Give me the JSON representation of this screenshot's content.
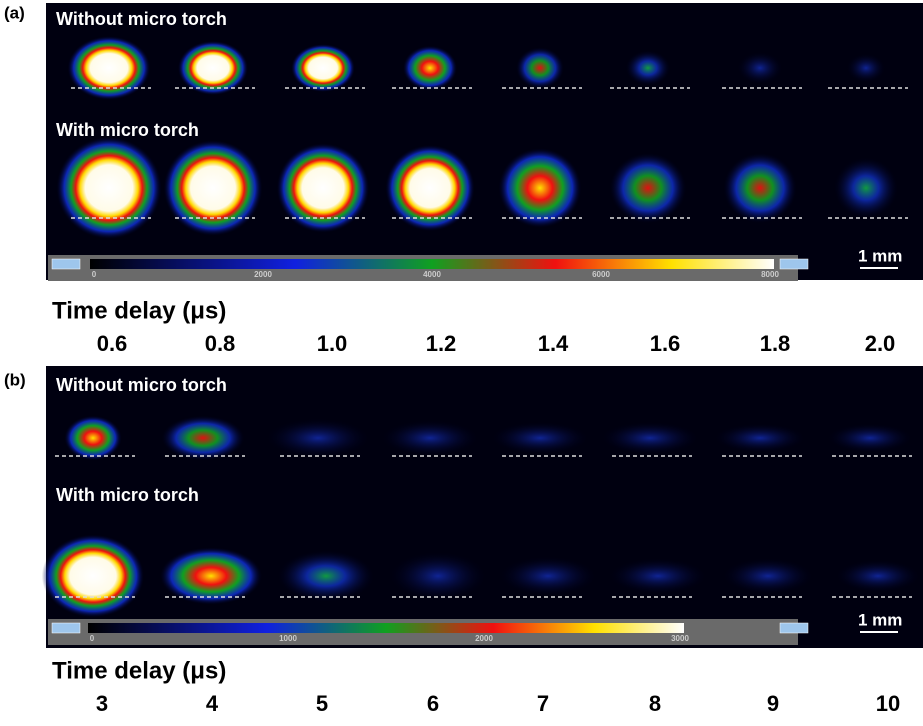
{
  "panels": [
    {
      "label": "(a)",
      "row_labels": [
        "Without micro torch",
        "With micro torch"
      ],
      "colorbar_ticks": [
        0,
        2000,
        4000,
        6000,
        8000
      ],
      "scale_bar": "1 mm",
      "axis_title": "Time delay (μs)",
      "time_delays": [
        "0.6",
        "0.8",
        "1.0",
        "1.2",
        "1.4",
        "1.6",
        "1.8",
        "2.0"
      ]
    },
    {
      "label": "(b)",
      "row_labels": [
        "Without micro torch",
        "With micro torch"
      ],
      "colorbar_ticks": [
        0,
        1000,
        2000,
        3000
      ],
      "scale_bar": "1 mm",
      "axis_title": "Time delay (μs)",
      "time_delays": [
        "3",
        "4",
        "5",
        "6",
        "7",
        "8",
        "9",
        "10"
      ]
    }
  ]
}
